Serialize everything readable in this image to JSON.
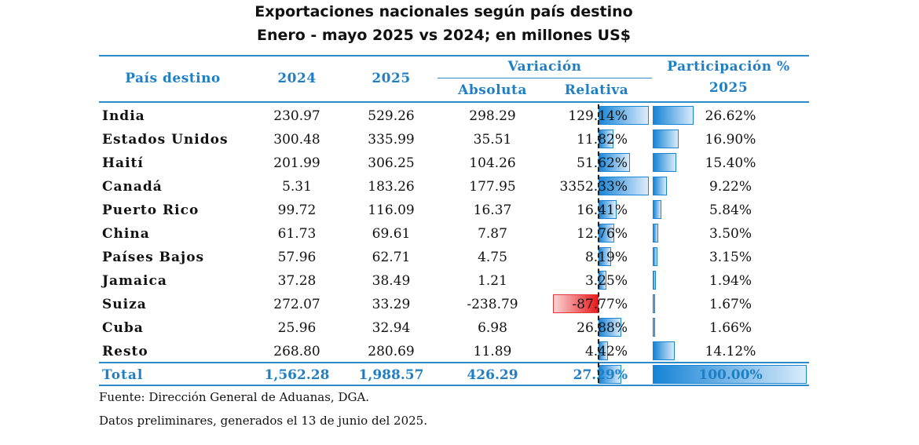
{
  "title": "Exportaciones nacionales según país destino",
  "subtitle": "Enero - mayo 2025 vs 2024; en millones US$",
  "headers": {
    "country": "País destino",
    "y2024": "2024",
    "y2025": "2025",
    "variation": "Variación",
    "absolute": "Absoluta",
    "relative": "Relativa",
    "share_line1": "Participación %",
    "share_line2": "2025"
  },
  "rows": [
    {
      "country": "India",
      "v2024": "230.97",
      "v2025": "529.26",
      "abs": "298.29",
      "rel": "129.14%",
      "share": "26.62%",
      "rel_value": 129.14,
      "share_value": 26.62
    },
    {
      "country": "Estados Unidos",
      "v2024": "300.48",
      "v2025": "335.99",
      "abs": "35.51",
      "rel": "11.82%",
      "share": "16.90%",
      "rel_value": 11.82,
      "share_value": 16.9
    },
    {
      "country": "Haití",
      "v2024": "201.99",
      "v2025": "306.25",
      "abs": "104.26",
      "rel": "51.62%",
      "share": "15.40%",
      "rel_value": 51.62,
      "share_value": 15.4
    },
    {
      "country": "Canadá",
      "v2024": "5.31",
      "v2025": "183.26",
      "abs": "177.95",
      "rel": "3352.33%",
      "share": "9.22%",
      "rel_value": 3352.33,
      "share_value": 9.22
    },
    {
      "country": "Puerto Rico",
      "v2024": "99.72",
      "v2025": "116.09",
      "abs": "16.37",
      "rel": "16.41%",
      "share": "5.84%",
      "rel_value": 16.41,
      "share_value": 5.84
    },
    {
      "country": "China",
      "v2024": "61.73",
      "v2025": "69.61",
      "abs": "7.87",
      "rel": "12.76%",
      "share": "3.50%",
      "rel_value": 12.76,
      "share_value": 3.5
    },
    {
      "country": "Países Bajos",
      "v2024": "57.96",
      "v2025": "62.71",
      "abs": "4.75",
      "rel": "8.19%",
      "share": "3.15%",
      "rel_value": 8.19,
      "share_value": 3.15
    },
    {
      "country": "Jamaica",
      "v2024": "37.28",
      "v2025": "38.49",
      "abs": "1.21",
      "rel": "3.25%",
      "share": "1.94%",
      "rel_value": 3.25,
      "share_value": 1.94
    },
    {
      "country": "Suiza",
      "v2024": "272.07",
      "v2025": "33.29",
      "abs": "-238.79",
      "rel": "-87.77%",
      "share": "1.67%",
      "rel_value": -87.77,
      "share_value": 1.67
    },
    {
      "country": "Cuba",
      "v2024": "25.96",
      "v2025": "32.94",
      "abs": "6.98",
      "rel": "26.88%",
      "share": "1.66%",
      "rel_value": 26.88,
      "share_value": 1.66
    },
    {
      "country": "Resto",
      "v2024": "268.80",
      "v2025": "280.69",
      "abs": "11.89",
      "rel": "4.42%",
      "share": "14.12%",
      "rel_value": 4.42,
      "share_value": 14.12
    }
  ],
  "total": {
    "country": "Total",
    "v2024": "1,562.28",
    "v2025": "1,988.57",
    "abs": "426.29",
    "rel": "27.29%",
    "share": "100.00%",
    "rel_value": 27.29,
    "share_value": 100.0
  },
  "footer": {
    "source": "Fuente: Dirección General de Aduanas, DGA.",
    "note": "Datos preliminares, generados el  13 de junio del  2025."
  },
  "colors": {
    "accent": "#1f7fc4",
    "positive_bar": "#1a86d8",
    "negative_bar": "#e8191d"
  }
}
